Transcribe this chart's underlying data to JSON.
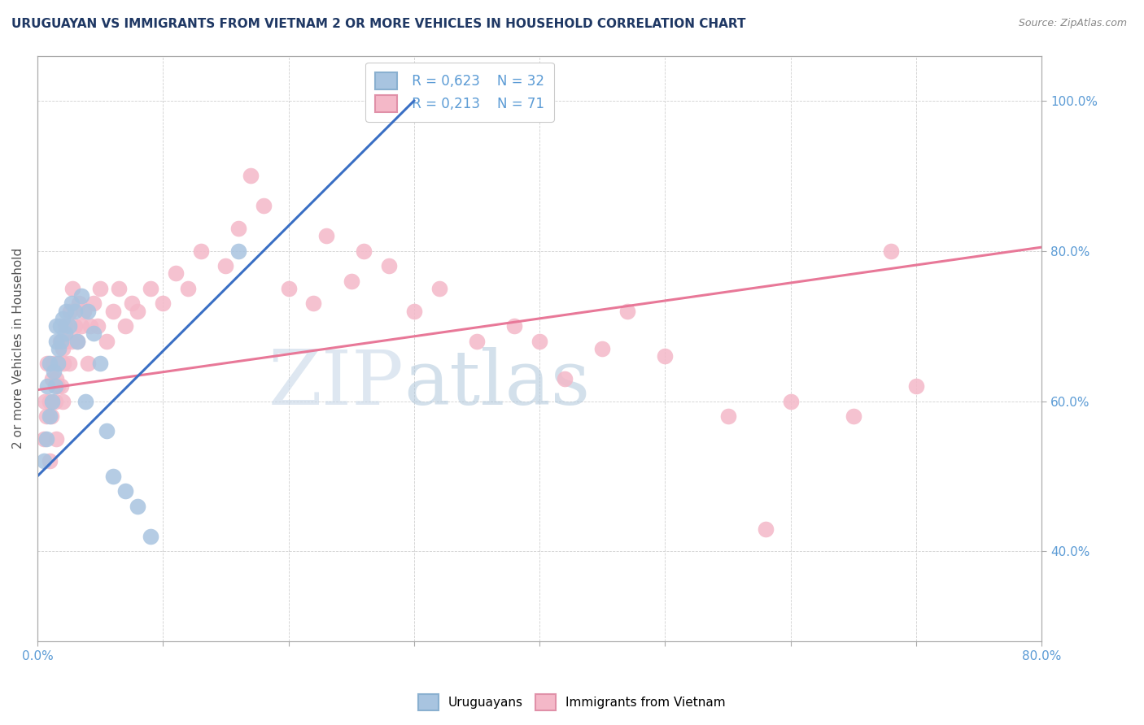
{
  "title": "URUGUAYAN VS IMMIGRANTS FROM VIETNAM 2 OR MORE VEHICLES IN HOUSEHOLD CORRELATION CHART",
  "source": "Source: ZipAtlas.com",
  "ylabel": "2 or more Vehicles in Household",
  "x_min": 0.0,
  "x_max": 0.8,
  "y_min": 0.28,
  "y_max": 1.06,
  "x_ticks": [
    0.0,
    0.1,
    0.2,
    0.3,
    0.4,
    0.5,
    0.6,
    0.7,
    0.8
  ],
  "y_ticks": [
    0.4,
    0.6,
    0.8,
    1.0
  ],
  "y_tick_labels": [
    "40.0%",
    "60.0%",
    "80.0%",
    "100.0%"
  ],
  "uruguayan_dot_color": "#a8c4e0",
  "vietnam_dot_color": "#f4b8c8",
  "trend_uru_color": "#3a6fc4",
  "trend_viet_color": "#e87898",
  "legend_r1": "R = 0,623",
  "legend_n1": "N = 32",
  "legend_r2": "R = 0,213",
  "legend_n2": "N = 71",
  "tick_color": "#5b9bd5",
  "grid_color": "#d0d0d0",
  "title_color": "#1f3864",
  "ylabel_color": "#555555",
  "uru_trend_x0": 0.0,
  "uru_trend_y0": 0.5,
  "uru_trend_x1": 0.3,
  "uru_trend_y1": 1.0,
  "viet_trend_x0": 0.0,
  "viet_trend_y0": 0.615,
  "viet_trend_x1": 0.8,
  "viet_trend_y1": 0.805,
  "uru_x": [
    0.005,
    0.007,
    0.008,
    0.01,
    0.01,
    0.012,
    0.013,
    0.014,
    0.015,
    0.015,
    0.016,
    0.017,
    0.018,
    0.019,
    0.02,
    0.022,
    0.023,
    0.025,
    0.027,
    0.03,
    0.032,
    0.035,
    0.038,
    0.04,
    0.045,
    0.05,
    0.055,
    0.06,
    0.07,
    0.08,
    0.09,
    0.16
  ],
  "uru_y": [
    0.52,
    0.55,
    0.62,
    0.58,
    0.65,
    0.6,
    0.64,
    0.62,
    0.68,
    0.7,
    0.65,
    0.67,
    0.7,
    0.68,
    0.71,
    0.69,
    0.72,
    0.7,
    0.73,
    0.72,
    0.68,
    0.74,
    0.6,
    0.72,
    0.69,
    0.65,
    0.56,
    0.5,
    0.48,
    0.46,
    0.42,
    0.8
  ],
  "viet_x": [
    0.005,
    0.006,
    0.007,
    0.008,
    0.01,
    0.01,
    0.011,
    0.012,
    0.013,
    0.014,
    0.015,
    0.015,
    0.016,
    0.017,
    0.018,
    0.019,
    0.02,
    0.02,
    0.021,
    0.022,
    0.023,
    0.025,
    0.026,
    0.027,
    0.028,
    0.03,
    0.032,
    0.033,
    0.035,
    0.037,
    0.04,
    0.042,
    0.045,
    0.048,
    0.05,
    0.055,
    0.06,
    0.065,
    0.07,
    0.075,
    0.08,
    0.09,
    0.1,
    0.11,
    0.12,
    0.13,
    0.15,
    0.16,
    0.17,
    0.18,
    0.2,
    0.22,
    0.23,
    0.25,
    0.26,
    0.28,
    0.3,
    0.32,
    0.35,
    0.38,
    0.4,
    0.42,
    0.45,
    0.47,
    0.5,
    0.55,
    0.58,
    0.6,
    0.65,
    0.7,
    0.68
  ],
  "viet_y": [
    0.55,
    0.6,
    0.58,
    0.65,
    0.52,
    0.6,
    0.58,
    0.63,
    0.65,
    0.6,
    0.55,
    0.63,
    0.62,
    0.65,
    0.68,
    0.62,
    0.6,
    0.67,
    0.65,
    0.7,
    0.68,
    0.65,
    0.72,
    0.68,
    0.75,
    0.7,
    0.68,
    0.73,
    0.7,
    0.72,
    0.65,
    0.7,
    0.73,
    0.7,
    0.75,
    0.68,
    0.72,
    0.75,
    0.7,
    0.73,
    0.72,
    0.75,
    0.73,
    0.77,
    0.75,
    0.8,
    0.78,
    0.83,
    0.9,
    0.86,
    0.75,
    0.73,
    0.82,
    0.76,
    0.8,
    0.78,
    0.72,
    0.75,
    0.68,
    0.7,
    0.68,
    0.63,
    0.67,
    0.72,
    0.66,
    0.58,
    0.43,
    0.6,
    0.58,
    0.62,
    0.8
  ]
}
